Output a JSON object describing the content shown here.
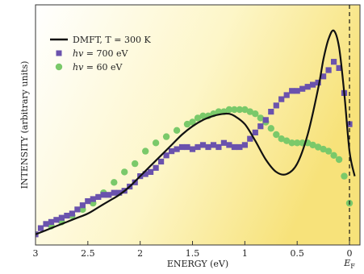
{
  "chart_data": {
    "type": "scatter",
    "xlabel": "ENERGY (eV)",
    "ylabel": "INTENSITY (arbitrary units)",
    "xlim": [
      3.0,
      -0.1
    ],
    "ylim": [
      0.0,
      1.0
    ],
    "x_reversed": true,
    "x_ticks": [
      "3",
      "2.5",
      "2",
      "1.5",
      "1",
      "0.5",
      "0"
    ],
    "x_tick_values": [
      3.0,
      2.5,
      2.0,
      1.5,
      1.0,
      0.5,
      0.0
    ],
    "fermi_label": "E",
    "fermi_sub": "F",
    "fermi_x": 0.0,
    "legend_position": "top-left",
    "background_gradient": [
      "#ffffff",
      "#fdf6c8",
      "#f7e27a"
    ],
    "series": [
      {
        "name": "DMFT, T = 300 K",
        "name_parts": [
          "DMFT, T = 300 K"
        ],
        "style": "line",
        "color": "#111111",
        "x": [
          3.0,
          2.9,
          2.8,
          2.7,
          2.6,
          2.5,
          2.4,
          2.3,
          2.2,
          2.1,
          2.0,
          1.9,
          1.8,
          1.7,
          1.6,
          1.5,
          1.4,
          1.3,
          1.2,
          1.15,
          1.1,
          1.0,
          0.9,
          0.8,
          0.7,
          0.6,
          0.5,
          0.4,
          0.3,
          0.25,
          0.2,
          0.15,
          0.1,
          0.05,
          0.0,
          -0.05
        ],
        "y": [
          0.02,
          0.04,
          0.06,
          0.08,
          0.1,
          0.12,
          0.15,
          0.18,
          0.21,
          0.25,
          0.3,
          0.35,
          0.4,
          0.45,
          0.5,
          0.54,
          0.57,
          0.59,
          0.6,
          0.6,
          0.59,
          0.55,
          0.47,
          0.38,
          0.32,
          0.31,
          0.36,
          0.5,
          0.72,
          0.86,
          0.96,
          1.0,
          0.92,
          0.7,
          0.42,
          0.3
        ]
      },
      {
        "name": "hv = 700 eV",
        "name_parts": [
          "hv",
          " = 700 eV"
        ],
        "style": "square",
        "color": "#6a52ad",
        "x": [
          3.0,
          2.95,
          2.9,
          2.85,
          2.8,
          2.75,
          2.7,
          2.65,
          2.6,
          2.55,
          2.5,
          2.45,
          2.4,
          2.35,
          2.3,
          2.25,
          2.2,
          2.15,
          2.1,
          2.05,
          2.0,
          1.95,
          1.9,
          1.85,
          1.8,
          1.75,
          1.7,
          1.65,
          1.6,
          1.55,
          1.5,
          1.45,
          1.4,
          1.35,
          1.3,
          1.25,
          1.2,
          1.15,
          1.1,
          1.05,
          1.0,
          0.95,
          0.9,
          0.85,
          0.8,
          0.75,
          0.7,
          0.65,
          0.6,
          0.55,
          0.5,
          0.45,
          0.4,
          0.35,
          0.3,
          0.25,
          0.2,
          0.15,
          0.1,
          0.05,
          0.0
        ],
        "y": [
          0.02,
          0.05,
          0.07,
          0.08,
          0.09,
          0.1,
          0.11,
          0.12,
          0.14,
          0.16,
          0.18,
          0.19,
          0.2,
          0.21,
          0.21,
          0.22,
          0.22,
          0.23,
          0.25,
          0.27,
          0.3,
          0.31,
          0.32,
          0.34,
          0.37,
          0.4,
          0.42,
          0.43,
          0.44,
          0.44,
          0.43,
          0.44,
          0.45,
          0.44,
          0.45,
          0.44,
          0.46,
          0.45,
          0.44,
          0.44,
          0.45,
          0.48,
          0.51,
          0.54,
          0.57,
          0.61,
          0.64,
          0.67,
          0.69,
          0.71,
          0.71,
          0.72,
          0.73,
          0.74,
          0.75,
          0.78,
          0.81,
          0.85,
          0.82,
          0.7,
          0.55
        ]
      },
      {
        "name": "hv = 60 eV",
        "name_parts": [
          "hv",
          " = 60 eV"
        ],
        "style": "circle",
        "color": "#7ac96a",
        "x": [
          2.85,
          2.75,
          2.65,
          2.55,
          2.45,
          2.35,
          2.25,
          2.15,
          2.05,
          1.95,
          1.85,
          1.75,
          1.65,
          1.55,
          1.5,
          1.45,
          1.4,
          1.35,
          1.3,
          1.25,
          1.2,
          1.15,
          1.1,
          1.05,
          1.0,
          0.95,
          0.9,
          0.85,
          0.8,
          0.75,
          0.7,
          0.65,
          0.6,
          0.55,
          0.5,
          0.45,
          0.4,
          0.35,
          0.3,
          0.25,
          0.2,
          0.15,
          0.1,
          0.05,
          0.0
        ],
        "y": [
          0.06,
          0.08,
          0.11,
          0.14,
          0.17,
          0.22,
          0.27,
          0.32,
          0.36,
          0.42,
          0.46,
          0.49,
          0.52,
          0.55,
          0.56,
          0.58,
          0.59,
          0.59,
          0.6,
          0.61,
          0.61,
          0.62,
          0.62,
          0.62,
          0.62,
          0.61,
          0.6,
          0.58,
          0.56,
          0.53,
          0.5,
          0.48,
          0.47,
          0.46,
          0.46,
          0.46,
          0.46,
          0.45,
          0.44,
          0.43,
          0.42,
          0.4,
          0.38,
          0.3,
          0.17
        ]
      }
    ]
  }
}
